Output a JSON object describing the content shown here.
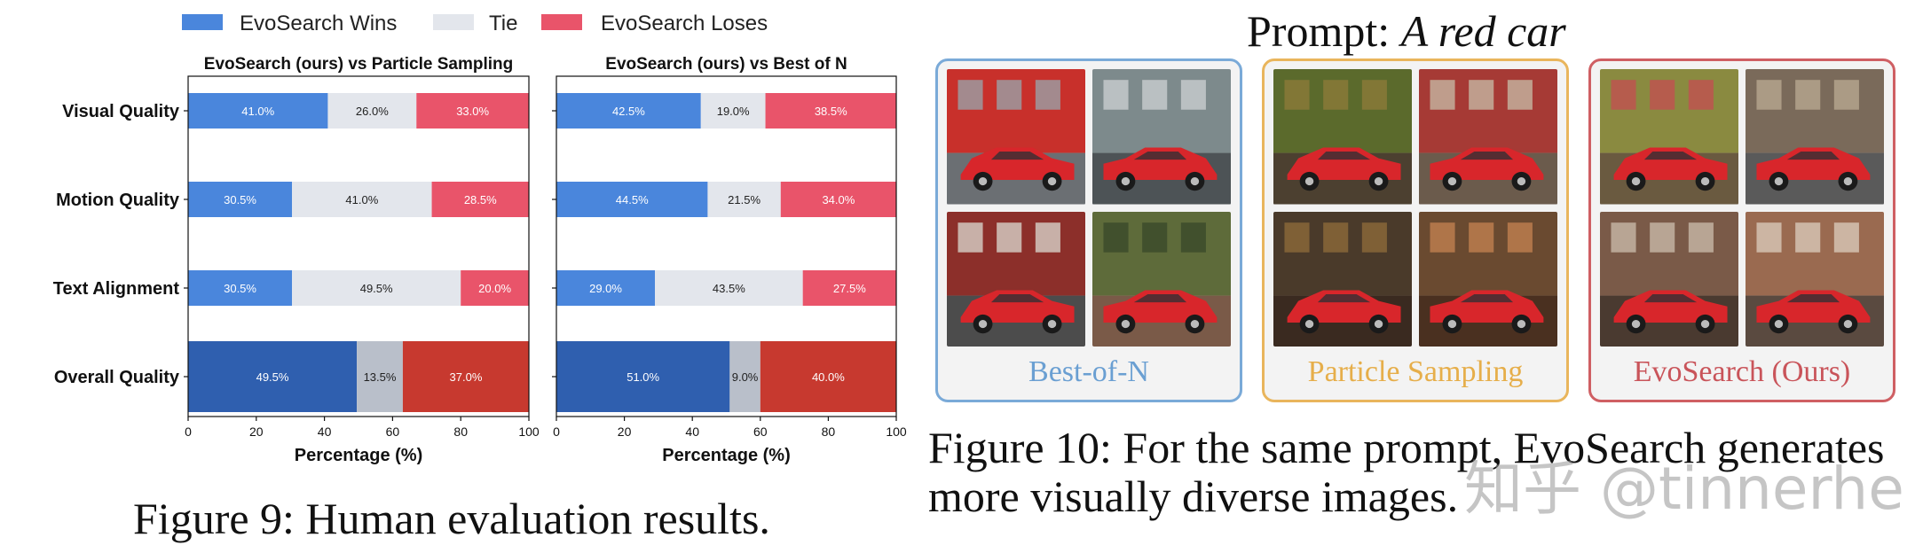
{
  "figure9": {
    "caption": "Figure 9: Human evaluation results.",
    "legend": [
      {
        "label": "EvoSearch Wins",
        "color": "#4a86dc"
      },
      {
        "label": "Tie",
        "color": "#e3e6ec"
      },
      {
        "label": "EvoSearch Loses",
        "color": "#e9546a"
      }
    ]
  },
  "chart_data": [
    {
      "type": "bar",
      "orientation": "horizontal-stacked",
      "title": "EvoSearch (ours) vs Particle Sampling",
      "xlabel": "Percentage (%)",
      "xlim": [
        0,
        100
      ],
      "xticks": [
        0,
        20,
        40,
        60,
        80,
        100
      ],
      "categories": [
        "Visual Quality",
        "Motion Quality",
        "Text Alignment",
        "Overall Quality"
      ],
      "series": [
        {
          "name": "EvoSearch Wins",
          "values": [
            41.0,
            30.5,
            30.5,
            49.5
          ],
          "labels": [
            "41.0%",
            "30.5%",
            "30.5%",
            "49.5%"
          ]
        },
        {
          "name": "Tie",
          "values": [
            26.0,
            41.0,
            49.5,
            13.5
          ],
          "labels": [
            "26.0%",
            "41.0%",
            "49.5%",
            "13.5%"
          ]
        },
        {
          "name": "EvoSearch Loses",
          "values": [
            33.0,
            28.5,
            20.0,
            37.0
          ],
          "labels": [
            "33.0%",
            "28.5%",
            "20.0%",
            "37.0%"
          ]
        }
      ],
      "overall_colors": [
        "#2f5faf",
        "#b9bfca",
        "#c7392f"
      ]
    },
    {
      "type": "bar",
      "orientation": "horizontal-stacked",
      "title": "EvoSearch (ours) vs Best of N",
      "xlabel": "Percentage (%)",
      "xlim": [
        0,
        100
      ],
      "xticks": [
        0,
        20,
        40,
        60,
        80,
        100
      ],
      "categories": [
        "Visual Quality",
        "Motion Quality",
        "Text Alignment",
        "Overall Quality"
      ],
      "series": [
        {
          "name": "EvoSearch Wins",
          "values": [
            42.5,
            44.5,
            29.0,
            51.0
          ],
          "labels": [
            "42.5%",
            "44.5%",
            "29.0%",
            "51.0%"
          ]
        },
        {
          "name": "Tie",
          "values": [
            19.0,
            21.5,
            43.5,
            9.0
          ],
          "labels": [
            "19.0%",
            "21.5%",
            "43.5%",
            "9.0%"
          ]
        },
        {
          "name": "EvoSearch Loses",
          "values": [
            38.5,
            34.0,
            27.5,
            40.0
          ],
          "labels": [
            "38.5%",
            "34.0%",
            "27.5%",
            "40.0%"
          ]
        }
      ],
      "overall_colors": [
        "#2f5faf",
        "#b9bfca",
        "#c7392f"
      ]
    }
  ],
  "figure10": {
    "prompt_prefix": "Prompt: ",
    "prompt_text": "A red car",
    "caption": "Figure 10: For the same prompt, EvoSearch generates more visually diverse images.",
    "panels": [
      {
        "label": "Best-of-N",
        "border_color": "#7aaad8"
      },
      {
        "label": "Particle Sampling",
        "border_color": "#e9b55c"
      },
      {
        "label": "EvoSearch (Ours)",
        "border_color": "#cf5f63"
      }
    ]
  },
  "watermark": "知乎 @tinnerhe"
}
